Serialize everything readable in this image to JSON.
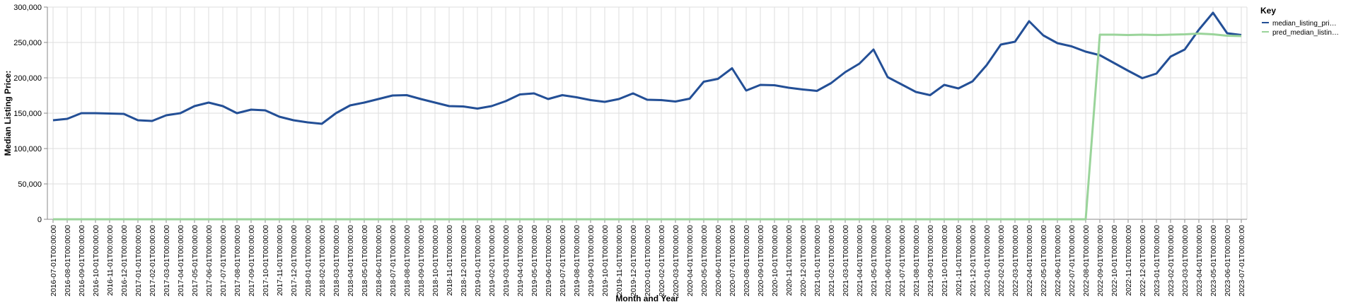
{
  "chart_data": {
    "type": "line",
    "x_label": "Month and Year",
    "y_label": "Median Listing Price:",
    "legend_title": "Key",
    "legend_position": "right",
    "grid": true,
    "categories": [
      "2016-07-01T00:00:00",
      "2016-08-01T00:00:00",
      "2016-09-01T00:00:00",
      "2016-10-01T00:00:00",
      "2016-11-01T00:00:00",
      "2016-12-01T00:00:00",
      "2017-01-01T00:00:00",
      "2017-02-01T00:00:00",
      "2017-03-01T00:00:00",
      "2017-04-01T00:00:00",
      "2017-05-01T00:00:00",
      "2017-06-01T00:00:00",
      "2017-07-01T00:00:00",
      "2017-08-01T00:00:00",
      "2017-09-01T00:00:00",
      "2017-10-01T00:00:00",
      "2017-11-01T00:00:00",
      "2017-12-01T00:00:00",
      "2018-01-01T00:00:00",
      "2018-02-01T00:00:00",
      "2018-03-01T00:00:00",
      "2018-04-01T00:00:00",
      "2018-05-01T00:00:00",
      "2018-06-01T00:00:00",
      "2018-07-01T00:00:00",
      "2018-08-01T00:00:00",
      "2018-09-01T00:00:00",
      "2018-10-01T00:00:00",
      "2018-11-01T00:00:00",
      "2018-12-01T00:00:00",
      "2019-01-01T00:00:00",
      "2019-02-01T00:00:00",
      "2019-03-01T00:00:00",
      "2019-04-01T00:00:00",
      "2019-05-01T00:00:00",
      "2019-06-01T00:00:00",
      "2019-07-01T00:00:00",
      "2019-08-01T00:00:00",
      "2019-09-01T00:00:00",
      "2019-10-01T00:00:00",
      "2019-11-01T00:00:00",
      "2019-12-01T00:00:00",
      "2020-01-01T00:00:00",
      "2020-02-01T00:00:00",
      "2020-03-01T00:00:00",
      "2020-04-01T00:00:00",
      "2020-05-01T00:00:00",
      "2020-06-01T00:00:00",
      "2020-07-01T00:00:00",
      "2020-08-01T00:00:00",
      "2020-09-01T00:00:00",
      "2020-10-01T00:00:00",
      "2020-11-01T00:00:00",
      "2020-12-01T00:00:00",
      "2021-01-01T00:00:00",
      "2021-02-01T00:00:00",
      "2021-03-01T00:00:00",
      "2021-04-01T00:00:00",
      "2021-05-01T00:00:00",
      "2021-06-01T00:00:00",
      "2021-07-01T00:00:00",
      "2021-08-01T00:00:00",
      "2021-09-01T00:00:00",
      "2021-10-01T00:00:00",
      "2021-11-01T00:00:00",
      "2021-12-01T00:00:00",
      "2022-01-01T00:00:00",
      "2022-02-01T00:00:00",
      "2022-03-01T00:00:00",
      "2022-04-01T00:00:00",
      "2022-05-01T00:00:00",
      "2022-06-01T00:00:00",
      "2022-07-01T00:00:00",
      "2022-08-01T00:00:00",
      "2022-09-01T00:00:00",
      "2022-10-01T00:00:00",
      "2022-11-01T00:00:00",
      "2022-12-01T00:00:00",
      "2023-01-01T00:00:00",
      "2023-02-01T00:00:00",
      "2023-03-01T00:00:00",
      "2023-04-01T00:00:00",
      "2023-05-01T00:00:00",
      "2023-06-01T00:00:00",
      "2023-07-01T00:00:00"
    ],
    "series": [
      {
        "name": "median_listing_pri…",
        "color": "#234f96",
        "values": [
          140000,
          142000,
          150000,
          150000,
          149500,
          149000,
          140000,
          139000,
          147000,
          150000,
          160000,
          165000,
          160000,
          150000,
          155000,
          154000,
          145000,
          140000,
          137000,
          135000,
          150000,
          161000,
          165000,
          170000,
          175000,
          175500,
          170000,
          165000,
          160000,
          159500,
          156500,
          160000,
          167000,
          176500,
          178000,
          170000,
          175500,
          172500,
          168500,
          166000,
          170000,
          178000,
          169000,
          168500,
          166500,
          170500,
          194500,
          198500,
          213500,
          182000,
          190000,
          189500,
          186000,
          183500,
          181500,
          192500,
          208000,
          220000,
          240000,
          201000,
          190500,
          180000,
          175500,
          190000,
          185000,
          195000,
          218000,
          247000,
          251000,
          280000,
          260000,
          249000,
          244500,
          237000,
          232000,
          221000,
          210000,
          199500,
          206000,
          230000,
          240000,
          268000,
          292000,
          263000,
          260500
        ]
      },
      {
        "name": "pred_median_listin…",
        "color": "#9ad49a",
        "values": [
          0,
          0,
          0,
          0,
          0,
          0,
          0,
          0,
          0,
          0,
          0,
          0,
          0,
          0,
          0,
          0,
          0,
          0,
          0,
          0,
          0,
          0,
          0,
          0,
          0,
          0,
          0,
          0,
          0,
          0,
          0,
          0,
          0,
          0,
          0,
          0,
          0,
          0,
          0,
          0,
          0,
          0,
          0,
          0,
          0,
          0,
          0,
          0,
          0,
          0,
          0,
          0,
          0,
          0,
          0,
          0,
          0,
          0,
          0,
          0,
          0,
          0,
          0,
          0,
          0,
          0,
          0,
          0,
          0,
          0,
          0,
          0,
          0,
          0,
          261000,
          261000,
          260500,
          261000,
          260500,
          261000,
          261500,
          262500,
          261500,
          259500,
          259000
        ]
      }
    ],
    "ylim": [
      0,
      300000
    ],
    "yticks": [
      0,
      {
        "value": 50000,
        "label": "50,000"
      },
      {
        "value": 100000,
        "label": "100,000"
      },
      {
        "value": 150000,
        "label": "150,000"
      },
      {
        "value": 200000,
        "label": "200,000"
      },
      {
        "value": 250000,
        "label": "250,000"
      },
      {
        "value": 300000,
        "label": "300,000"
      }
    ]
  }
}
